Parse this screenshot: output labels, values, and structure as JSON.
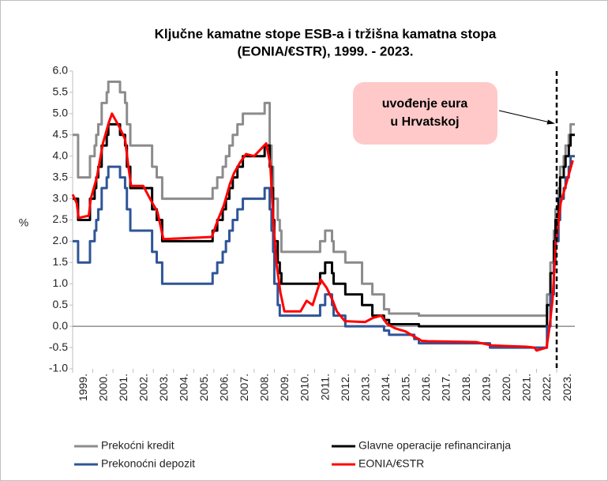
{
  "chart_data": {
    "type": "line",
    "title": [
      "Ključne kamatne stope ESB-a i tržišna kamatna stopa",
      "(EONIA/€STR), 1999. - 2023."
    ],
    "ylabel": "%",
    "xlim": [
      1999,
      2023.9
    ],
    "ylim": [
      -1.0,
      6.0
    ],
    "yticks": [
      {
        "value": 6,
        "label": "6.0"
      },
      5.5,
      {
        "value": 5,
        "label": "5.0"
      },
      4.5,
      {
        "value": 4,
        "label": "4.0"
      },
      3.5,
      {
        "value": 3,
        "label": "3.0"
      },
      2.5,
      {
        "value": 2,
        "label": "2.0"
      },
      1.5,
      {
        "value": 1,
        "label": "1.0"
      },
      0.5,
      {
        "value": 0,
        "label": "0.0"
      },
      -0.5,
      {
        "value": -1,
        "label": "-1.0"
      }
    ],
    "xticks": [
      {
        "value": 1999,
        "label": "1999."
      },
      {
        "value": 2000,
        "label": "2000."
      },
      {
        "value": 2001,
        "label": "2001."
      },
      {
        "value": 2002,
        "label": "2002."
      },
      {
        "value": 2003,
        "label": "2003."
      },
      {
        "value": 2004,
        "label": "2004."
      },
      {
        "value": 2005,
        "label": "2005."
      },
      {
        "value": 2006,
        "label": "2006."
      },
      {
        "value": 2007,
        "label": "2007."
      },
      {
        "value": 2008,
        "label": "2008."
      },
      {
        "value": 2009,
        "label": "2009."
      },
      {
        "value": 2010,
        "label": "2010."
      },
      {
        "value": 2011,
        "label": "2011."
      },
      {
        "value": 2012,
        "label": "2012."
      },
      {
        "value": 2013,
        "label": "2013."
      },
      {
        "value": 2014,
        "label": "2014."
      },
      {
        "value": 2015,
        "label": "2015."
      },
      {
        "value": 2016,
        "label": "2016."
      },
      {
        "value": 2017,
        "label": "2017."
      },
      {
        "value": 2018,
        "label": "2018."
      },
      {
        "value": 2019,
        "label": "2019."
      },
      {
        "value": 2020,
        "label": "2020."
      },
      {
        "value": 2021,
        "label": "2021."
      },
      {
        "value": 2022,
        "label": "2022."
      },
      {
        "value": 2023,
        "label": "2023."
      }
    ],
    "annotation": {
      "text": [
        "uvođenje eura",
        "u Hrvatskoj"
      ],
      "x": 2023
    },
    "series": [
      {
        "name": "Prekoćni kredit",
        "color": "#8c8c8c",
        "step": true,
        "x": [
          1999,
          1999.27,
          1999.86,
          2000.09,
          2000.17,
          2000.27,
          2000.44,
          2000.69,
          2000.77,
          2001.35,
          2001.6,
          2001.69,
          2001.86,
          2002.94,
          2003.17,
          2003.44,
          2005.94,
          2006.17,
          2006.44,
          2006.6,
          2006.77,
          2006.94,
          2007.17,
          2007.44,
          2008.52,
          2008.77,
          2008.86,
          2008.94,
          2009.17,
          2009.27,
          2009.35,
          2011.27,
          2011.52,
          2011.86,
          2011.94,
          2012.52,
          2013.35,
          2013.86,
          2014.44,
          2014.69,
          2016.17,
          2022.52,
          2022.69,
          2022.86,
          2022.94,
          2023.09,
          2023.17,
          2023.35,
          2023.44,
          2023.6,
          2023.69
        ],
        "values": [
          4.5,
          3.5,
          4.0,
          4.25,
          4.5,
          4.75,
          5.25,
          5.5,
          5.75,
          5.5,
          5.25,
          4.75,
          4.25,
          3.75,
          3.5,
          3.0,
          3.25,
          3.5,
          3.75,
          4.0,
          4.25,
          4.5,
          4.75,
          5.0,
          5.25,
          4.25,
          3.75,
          3.0,
          2.5,
          2.25,
          1.75,
          2.0,
          2.25,
          2.0,
          1.75,
          1.5,
          1.0,
          0.75,
          0.4,
          0.3,
          0.25,
          0.75,
          1.5,
          2.25,
          2.75,
          3.25,
          3.75,
          4.0,
          4.25,
          4.5,
          4.75
        ]
      },
      {
        "name": "Glavne operacije refinanciranja",
        "color": "#000000",
        "step": true,
        "x": [
          1999,
          1999.27,
          1999.86,
          2000.09,
          2000.17,
          2000.27,
          2000.44,
          2000.69,
          2000.77,
          2001.35,
          2001.6,
          2001.69,
          2001.86,
          2002.94,
          2003.17,
          2003.44,
          2005.94,
          2006.17,
          2006.44,
          2006.6,
          2006.77,
          2006.94,
          2007.17,
          2007.44,
          2008.52,
          2008.77,
          2008.86,
          2008.94,
          2009.0,
          2009.17,
          2009.27,
          2009.35,
          2011.27,
          2011.52,
          2011.86,
          2011.94,
          2012.52,
          2013.35,
          2013.86,
          2014.44,
          2014.69,
          2016.17,
          2022.52,
          2022.69,
          2022.86,
          2022.94,
          2023.09,
          2023.17,
          2023.35,
          2023.44,
          2023.6,
          2023.69
        ],
        "values": [
          3.0,
          2.5,
          3.0,
          3.25,
          3.5,
          3.75,
          4.25,
          4.5,
          4.75,
          4.5,
          4.25,
          3.75,
          3.25,
          2.75,
          2.5,
          2.0,
          2.25,
          2.5,
          2.75,
          3.0,
          3.25,
          3.5,
          3.75,
          4.0,
          4.25,
          3.75,
          3.25,
          2.5,
          2.0,
          1.5,
          1.25,
          1.0,
          1.25,
          1.5,
          1.25,
          1.0,
          0.75,
          0.5,
          0.25,
          0.15,
          0.05,
          0.0,
          0.5,
          1.25,
          2.0,
          2.5,
          3.0,
          3.5,
          3.75,
          4.0,
          4.25,
          4.5
        ]
      },
      {
        "name": "Prekonoćni depozit",
        "color": "#2f5597",
        "step": true,
        "x": [
          1999,
          1999.27,
          1999.86,
          2000.09,
          2000.17,
          2000.27,
          2000.44,
          2000.69,
          2000.77,
          2001.35,
          2001.6,
          2001.69,
          2001.86,
          2002.94,
          2003.17,
          2003.44,
          2005.94,
          2006.17,
          2006.44,
          2006.6,
          2006.77,
          2006.94,
          2007.17,
          2007.44,
          2008.52,
          2008.77,
          2008.86,
          2008.94,
          2009.0,
          2009.17,
          2009.27,
          2011.27,
          2011.52,
          2011.86,
          2011.94,
          2012.52,
          2014.44,
          2014.69,
          2015.94,
          2016.17,
          2019.69,
          2022.52,
          2022.69,
          2022.86,
          2022.94,
          2023.09,
          2023.17,
          2023.35,
          2023.44,
          2023.6,
          2023.69
        ],
        "values": [
          2.0,
          1.5,
          2.0,
          2.25,
          2.5,
          2.75,
          3.25,
          3.5,
          3.75,
          3.5,
          3.25,
          2.75,
          2.25,
          1.75,
          1.5,
          1.0,
          1.25,
          1.5,
          1.75,
          2.0,
          2.25,
          2.5,
          2.75,
          3.0,
          3.25,
          2.75,
          2.25,
          1.75,
          1.0,
          0.5,
          0.25,
          0.5,
          0.75,
          0.5,
          0.25,
          0.0,
          -0.1,
          -0.2,
          -0.3,
          -0.4,
          -0.5,
          0.0,
          0.75,
          1.5,
          2.0,
          2.5,
          3.0,
          3.25,
          3.5,
          3.75,
          4.0
        ]
      },
      {
        "name": "EONIA/€STR",
        "color": "#ff0000",
        "step": false,
        "x": [
          1999,
          1999.2,
          1999.3,
          1999.8,
          1999.9,
          2000.2,
          2000.5,
          2000.8,
          2000.95,
          2001.3,
          2001.6,
          2001.75,
          2001.9,
          2002.5,
          2002.95,
          2003.2,
          2003.5,
          2005.9,
          2006.2,
          2006.5,
          2006.8,
          2007.0,
          2007.3,
          2007.6,
          2008.0,
          2008.6,
          2008.8,
          2008.95,
          2009.1,
          2009.3,
          2009.5,
          2010.3,
          2010.6,
          2010.9,
          2011.3,
          2011.6,
          2011.9,
          2012.1,
          2012.5,
          2013.5,
          2013.9,
          2014.3,
          2014.6,
          2015.0,
          2015.5,
          2015.9,
          2016.3,
          2016.6,
          2019.0,
          2019.8,
          2021.5,
          2021.9,
          2022.0,
          2022.5,
          2022.65,
          2022.8,
          2022.95,
          2023.2,
          2023.5,
          2023.8
        ],
        "values": [
          3.1,
          2.9,
          2.55,
          2.6,
          3.0,
          3.5,
          4.3,
          4.8,
          5.0,
          4.7,
          4.4,
          3.8,
          3.3,
          3.3,
          2.9,
          2.7,
          2.05,
          2.1,
          2.5,
          2.85,
          3.35,
          3.6,
          3.85,
          4.05,
          4.0,
          4.3,
          3.8,
          2.5,
          1.5,
          0.8,
          0.35,
          0.35,
          0.6,
          0.5,
          1.1,
          0.9,
          0.6,
          0.35,
          0.12,
          0.1,
          0.2,
          0.25,
          0.05,
          -0.05,
          -0.12,
          -0.23,
          -0.34,
          -0.35,
          -0.37,
          -0.45,
          -0.48,
          -0.5,
          -0.57,
          -0.5,
          0.0,
          0.65,
          1.9,
          2.9,
          3.4,
          3.9
        ]
      }
    ]
  }
}
